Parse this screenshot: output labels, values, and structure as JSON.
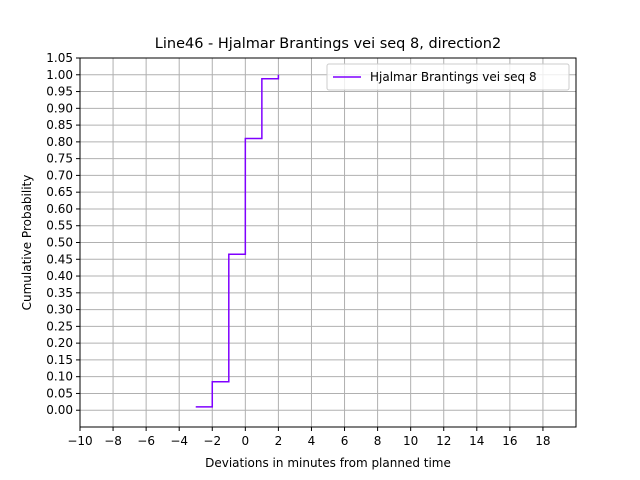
{
  "chart_data": {
    "type": "line",
    "step": true,
    "title": "Line46 - Hjalmar Brantings vei seq 8, direction2",
    "xlabel": "Deviations in minutes from planned time",
    "ylabel": "Cumulative Probability",
    "xlim": [
      -10,
      20
    ],
    "ylim": [
      -0.05,
      1.05
    ],
    "x_ticks": [
      -10,
      -8,
      -6,
      -4,
      -2,
      0,
      2,
      4,
      6,
      8,
      10,
      12,
      14,
      16,
      18
    ],
    "x_tick_labels": [
      "−10",
      "−8",
      "−6",
      "−4",
      "−2",
      "0",
      "2",
      "4",
      "6",
      "8",
      "10",
      "12",
      "14",
      "16",
      "18"
    ],
    "y_ticks": [
      0,
      0.05,
      0.1,
      0.15,
      0.2,
      0.25,
      0.3,
      0.35,
      0.4,
      0.45,
      0.5,
      0.55,
      0.6,
      0.65,
      0.7,
      0.75,
      0.8,
      0.85,
      0.9,
      0.95,
      1.0,
      1.05
    ],
    "y_tick_labels": [
      "0.00",
      "0.05",
      "0.10",
      "0.15",
      "0.20",
      "0.25",
      "0.30",
      "0.35",
      "0.40",
      "0.45",
      "0.50",
      "0.55",
      "0.60",
      "0.65",
      "0.70",
      "0.75",
      "0.80",
      "0.85",
      "0.90",
      "0.95",
      "1.00",
      "1.05"
    ],
    "grid": true,
    "legend_position": "top-right",
    "series": [
      {
        "name": "Hjalmar Brantings vei seq 8",
        "color": "#7f00ff",
        "x": [
          -3,
          -2,
          -1,
          0,
          1,
          2
        ],
        "y": [
          0.01,
          0.085,
          0.465,
          0.81,
          0.988,
          1.0
        ]
      }
    ]
  }
}
